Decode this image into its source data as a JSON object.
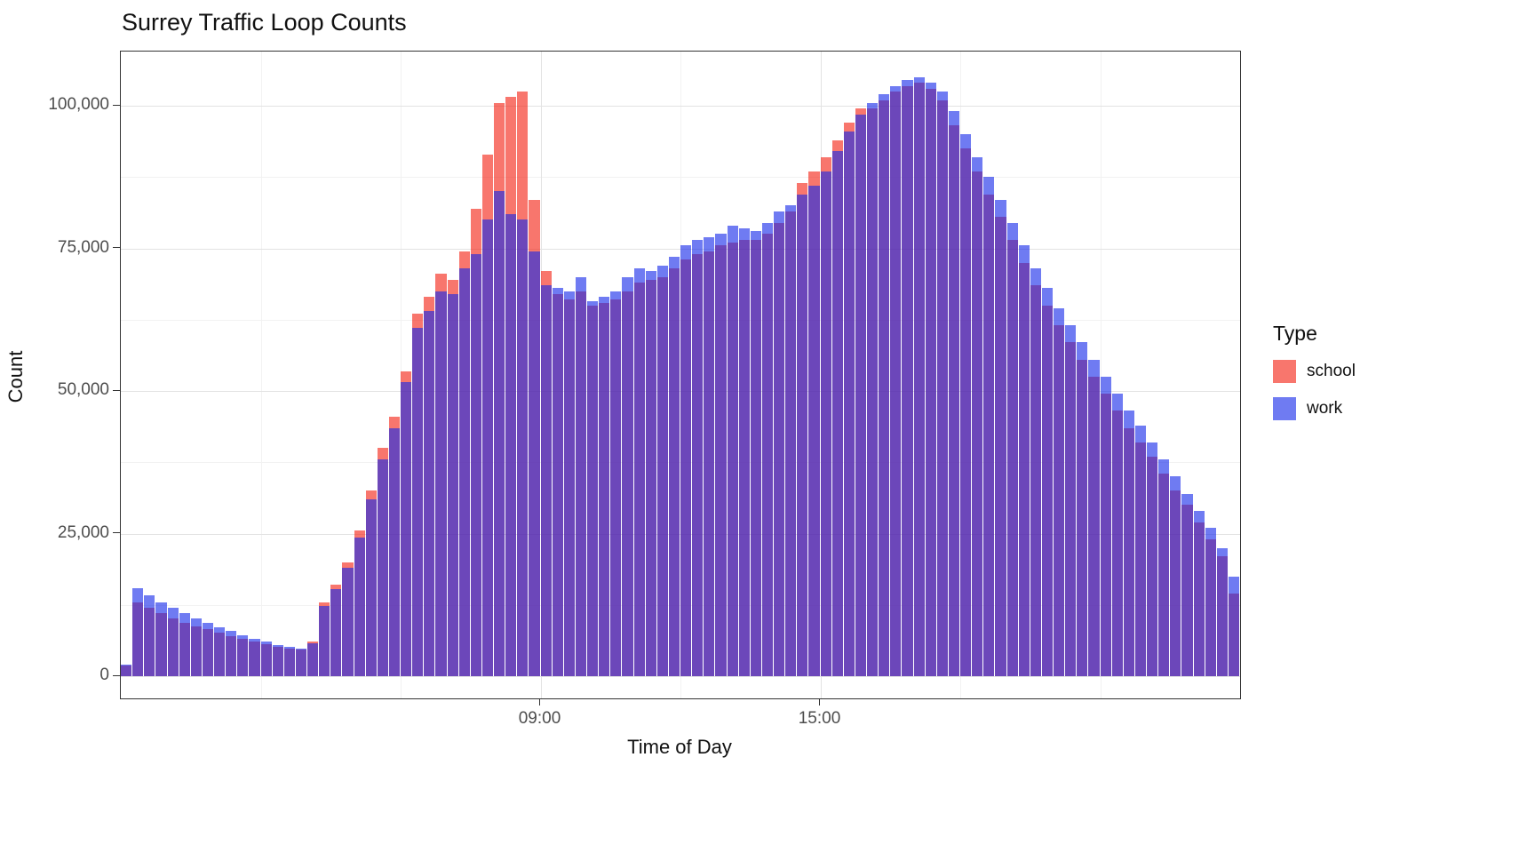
{
  "chart_data": {
    "type": "bar",
    "title": "Surrey Traffic Loop Counts",
    "xlabel": "Time of Day",
    "ylabel": "Count",
    "grid": "on",
    "bin_minutes": 15,
    "xlim_hours": [
      0,
      24
    ],
    "ylim": [
      0,
      109500
    ],
    "categories": [
      "00:00",
      "00:15",
      "00:30",
      "00:45",
      "01:00",
      "01:15",
      "01:30",
      "01:45",
      "02:00",
      "02:15",
      "02:30",
      "02:45",
      "03:00",
      "03:15",
      "03:30",
      "03:45",
      "04:00",
      "04:15",
      "04:30",
      "04:45",
      "05:00",
      "05:15",
      "05:30",
      "05:45",
      "06:00",
      "06:15",
      "06:30",
      "06:45",
      "07:00",
      "07:15",
      "07:30",
      "07:45",
      "08:00",
      "08:15",
      "08:30",
      "08:45",
      "09:00",
      "09:15",
      "09:30",
      "09:45",
      "10:00",
      "10:15",
      "10:30",
      "10:45",
      "11:00",
      "11:15",
      "11:30",
      "11:45",
      "12:00",
      "12:15",
      "12:30",
      "12:45",
      "13:00",
      "13:15",
      "13:30",
      "13:45",
      "14:00",
      "14:15",
      "14:30",
      "14:45",
      "15:00",
      "15:15",
      "15:30",
      "15:45",
      "16:00",
      "16:15",
      "16:30",
      "16:45",
      "17:00",
      "17:15",
      "17:30",
      "17:45",
      "18:00",
      "18:15",
      "18:30",
      "18:45",
      "19:00",
      "19:15",
      "19:30",
      "19:45",
      "20:00",
      "20:15",
      "20:30",
      "20:45",
      "21:00",
      "21:15",
      "21:30",
      "21:45",
      "22:00",
      "22:15",
      "22:30",
      "22:45",
      "23:00",
      "23:15",
      "23:30",
      "23:45"
    ],
    "series": [
      {
        "name": "school",
        "fill": "rgba(244,34,20,0.62)",
        "appears_as": "#F8766D",
        "values": [
          1800,
          13000,
          12000,
          11000,
          10200,
          9400,
          8800,
          8200,
          7600,
          7000,
          6500,
          6000,
          5600,
          5200,
          4900,
          4700,
          6000,
          13000,
          16000,
          20000,
          25500,
          32500,
          40000,
          45500,
          53500,
          63500,
          66500,
          70500,
          69500,
          74500,
          82000,
          91500,
          100500,
          101500,
          102500,
          83500,
          71000,
          67000,
          66000,
          67500,
          65000,
          65500,
          66000,
          67500,
          69000,
          69500,
          70000,
          71500,
          73000,
          74000,
          74500,
          75500,
          76000,
          76500,
          76500,
          77500,
          79500,
          81500,
          86500,
          88500,
          91000,
          94000,
          97000,
          99500,
          99500,
          101000,
          102500,
          103500,
          104000,
          103000,
          101000,
          96500,
          92500,
          88500,
          84500,
          80500,
          76500,
          72500,
          68500,
          65000,
          61500,
          58500,
          55500,
          52500,
          49500,
          46500,
          43500,
          41000,
          38500,
          35500,
          32500,
          30000,
          27000,
          24000,
          21000,
          14500
        ]
      },
      {
        "name": "work",
        "fill": "rgba(23,42,234,0.62)",
        "appears_as": "#6F7BF2",
        "values": [
          2000,
          15500,
          14200,
          13000,
          12000,
          11000,
          10200,
          9400,
          8600,
          7900,
          7200,
          6600,
          6000,
          5500,
          5100,
          4900,
          5800,
          12300,
          15200,
          19000,
          24300,
          31000,
          38000,
          43500,
          51500,
          61000,
          64000,
          67500,
          67000,
          71500,
          74000,
          80000,
          85000,
          81000,
          80000,
          74500,
          68500,
          68000,
          67500,
          70000,
          65800,
          66500,
          67500,
          70000,
          71500,
          71000,
          72000,
          73500,
          75500,
          76500,
          77000,
          77500,
          79000,
          78500,
          78000,
          79500,
          81500,
          82500,
          84500,
          86000,
          88500,
          92000,
          95500,
          98500,
          100500,
          102000,
          103500,
          104500,
          105000,
          104000,
          102500,
          99000,
          95000,
          91000,
          87500,
          83500,
          79500,
          75500,
          71500,
          68000,
          64500,
          61500,
          58500,
          55500,
          52500,
          49500,
          46500,
          44000,
          41000,
          38000,
          35000,
          32000,
          29000,
          26000,
          22500,
          17500
        ]
      }
    ],
    "y_ticks": {
      "values": [
        0,
        25000,
        50000,
        75000,
        100000
      ],
      "labels": [
        "0",
        "25,000",
        "50,000",
        "75,000",
        "100,000"
      ]
    },
    "x_ticks": [
      {
        "label": "09:00",
        "hour": 9
      },
      {
        "label": "15:00",
        "hour": 15
      }
    ],
    "minor_x_hours": [
      3,
      6,
      12,
      18,
      21
    ],
    "minor_y_values": [
      12500,
      37500,
      62500,
      87500
    ],
    "legend": {
      "title": "Type",
      "position": "right",
      "entries": [
        {
          "label": "school",
          "fill": "rgba(244,34,20,0.62)"
        },
        {
          "label": "work",
          "fill": "rgba(23,42,234,0.62)"
        }
      ]
    },
    "overlap_note": "semi-transparent overlaid bars; overlap renders purple"
  }
}
